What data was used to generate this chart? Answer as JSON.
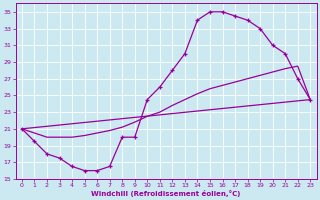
{
  "xlabel": "Windchill (Refroidissement éolien,°C)",
  "bg_color": "#cce8f0",
  "line_color": "#990099",
  "grid_color": "#ffffff",
  "xlim": [
    -0.5,
    23.5
  ],
  "ylim": [
    15,
    36
  ],
  "xticks": [
    0,
    1,
    2,
    3,
    4,
    5,
    6,
    7,
    8,
    9,
    10,
    11,
    12,
    13,
    14,
    15,
    16,
    17,
    18,
    19,
    20,
    21,
    22,
    23
  ],
  "yticks": [
    15,
    17,
    19,
    21,
    23,
    25,
    27,
    29,
    31,
    33,
    35
  ],
  "curve1_x": [
    0,
    1,
    2,
    3,
    4,
    5,
    6,
    7,
    8,
    9,
    10,
    11,
    12,
    13,
    14,
    15,
    16,
    17,
    18,
    19,
    20,
    21,
    22,
    23
  ],
  "curve1_y": [
    21,
    19.5,
    18,
    17.5,
    16.5,
    16.0,
    16.0,
    16.5,
    20,
    20,
    24.5,
    26,
    28,
    30,
    34,
    35,
    35,
    34.5,
    34,
    33,
    31,
    30,
    27,
    24.5
  ],
  "curve2_x": [
    0,
    23
  ],
  "curve2_y": [
    21,
    24.5
  ],
  "curve3_x": [
    0,
    1,
    2,
    3,
    4,
    5,
    6,
    7,
    8,
    9,
    10,
    11,
    12,
    13,
    14,
    15,
    16,
    17,
    18,
    19,
    20,
    21,
    22,
    23
  ],
  "curve3_y": [
    21,
    20.5,
    20,
    20,
    20,
    20.2,
    20.5,
    20.8,
    21.2,
    21.8,
    22.5,
    23,
    23.8,
    24.5,
    25.2,
    25.8,
    26.2,
    26.6,
    27,
    27.4,
    27.8,
    28.2,
    28.5,
    24.5
  ]
}
